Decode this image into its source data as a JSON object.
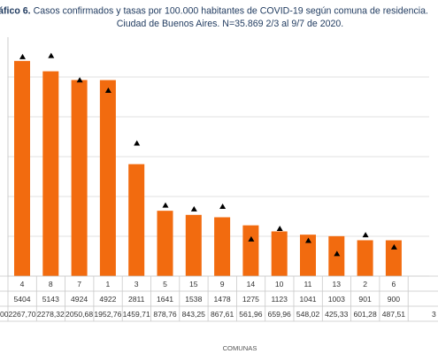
{
  "chart_data": {
    "type": "bar",
    "title_prefix": "ráfico 6.",
    "title_line1": "Casos confirmados y tasas por 100.000 habitantes de COVID-19 según comuna de residencia.",
    "title_line2": "Ciudad de Buenos Aires. N=35.869 2/3 al 9/7 de 2020.",
    "xlabel": "COMUNAS",
    "categories": [
      "4",
      "8",
      "7",
      "1",
      "3",
      "5",
      "15",
      "9",
      "14",
      "10",
      "11",
      "13",
      "2",
      "6"
    ],
    "series": [
      {
        "type": "bar",
        "label": "Casos confirmados",
        "values": [
          5404,
          5143,
          4924,
          4922,
          2811,
          1641,
          1538,
          1478,
          1275,
          1123,
          1041,
          1003,
          901,
          900
        ]
      },
      {
        "type": "marker",
        "label": "Tasa por 100.000 habitantes",
        "values_text": [
          "2267,70",
          "2278,32",
          "2050,68",
          "1952,76",
          "1459,71",
          "878,76",
          "843,25",
          "867,61",
          "561,96",
          "659,96",
          "548,02",
          "425,33",
          "601,28",
          "487,51"
        ],
        "values": [
          2267.7,
          2278.32,
          2050.68,
          1952.76,
          1459.71,
          878.76,
          843.25,
          867.61,
          561.96,
          659.96,
          548.02,
          425.33,
          601.28,
          487.51
        ]
      }
    ],
    "left_clipped_row2": "00",
    "right_clipped_row2": "3",
    "grid": true,
    "colors": {
      "bar": "#f26b0f",
      "marker": "#000000",
      "title": "#1f3a5f",
      "grid": "#d9d9d9"
    }
  }
}
